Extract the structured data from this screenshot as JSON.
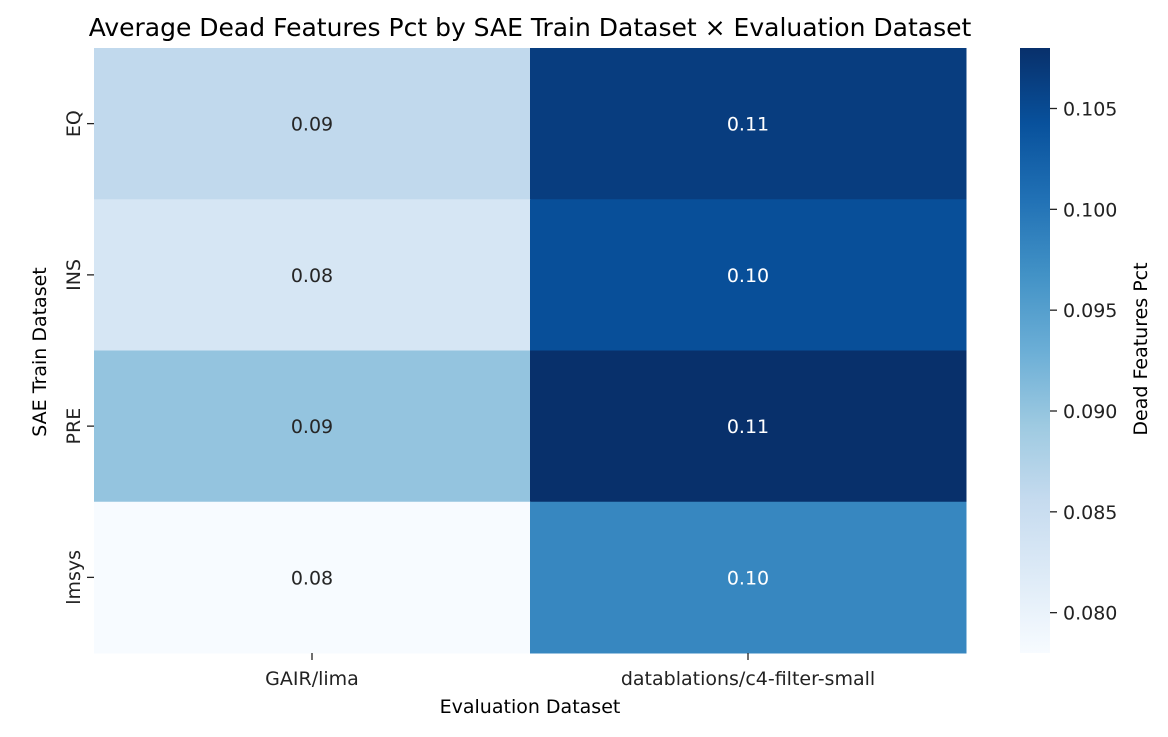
{
  "chart_data": {
    "type": "heatmap",
    "title": "Average Dead Features Pct by SAE Train Dataset × Evaluation Dataset",
    "xlabel": "Evaluation Dataset",
    "ylabel": "SAE Train Dataset",
    "x_categories": [
      "GAIR/lima",
      "datablations/c4-filter-small"
    ],
    "y_categories": [
      "EQ",
      "INS",
      "PRE",
      "lmsys"
    ],
    "values": [
      [
        0.086,
        0.1065
      ],
      [
        0.083,
        0.1045
      ],
      [
        0.09,
        0.108
      ],
      [
        0.078,
        0.098
      ]
    ],
    "annotations": [
      [
        "0.09",
        "0.11"
      ],
      [
        "0.08",
        "0.10"
      ],
      [
        "0.09",
        "0.11"
      ],
      [
        "0.08",
        "0.10"
      ]
    ],
    "colorbar": {
      "label": "Dead Features Pct",
      "range": [
        0.078,
        0.108
      ],
      "ticks": [
        0.08,
        0.085,
        0.09,
        0.095,
        0.1,
        0.105
      ],
      "tick_labels": [
        "0.080",
        "0.085",
        "0.090",
        "0.095",
        "0.100",
        "0.105"
      ],
      "colormap": "Blues",
      "colors": [
        "#f7fbff",
        "#deebf7",
        "#c6dbef",
        "#9ecae1",
        "#6baed6",
        "#4292c6",
        "#2171b5",
        "#08519c",
        "#08306b"
      ]
    },
    "grid": false
  }
}
